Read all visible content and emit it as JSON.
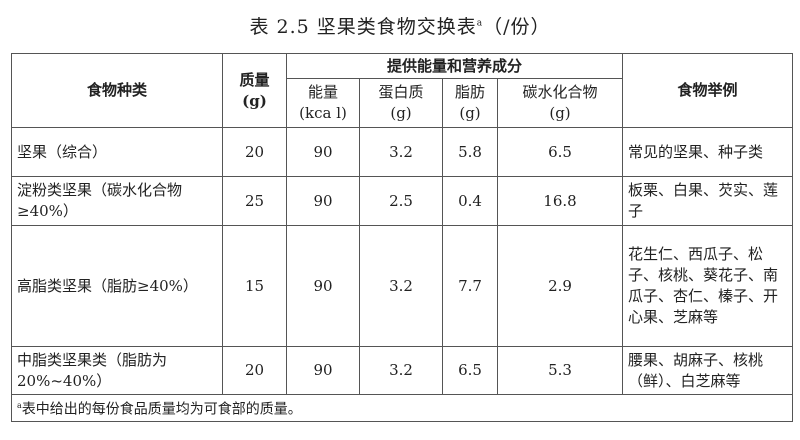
{
  "title": {
    "text": "表 2.5 坚果类食物交换表",
    "sup": "a",
    "suffix": "（/份）"
  },
  "headers": {
    "category": "食物种类",
    "mass": "质量",
    "mass_unit": "(g)",
    "group": "提供能量和营养成分",
    "energy": "能量",
    "energy_unit": "(kca l)",
    "protein": "蛋白质",
    "protein_unit": "(g)",
    "fat": "脂肪",
    "fat_unit": "(g)",
    "carb": "碳水化合物",
    "carb_unit": "(g)",
    "examples": "食物举例"
  },
  "rows": [
    {
      "category": "坚果（综合）",
      "mass": "20",
      "energy": "90",
      "protein": "3.2",
      "fat": "5.8",
      "carb": "6.5",
      "examples": "常见的坚果、种子类"
    },
    {
      "category": "淀粉类坚果（碳水化合物≥40%）",
      "mass": "25",
      "energy": "90",
      "protein": "2.5",
      "fat": "0.4",
      "carb": "16.8",
      "examples": "板栗、白果、芡实、莲子"
    },
    {
      "category": "高脂类坚果（脂肪≥40%）",
      "mass": "15",
      "energy": "90",
      "protein": "3.2",
      "fat": "7.7",
      "carb": "2.9",
      "examples": "花生仁、西瓜子、松子、核桃、葵花子、南瓜子、杏仁、榛子、开心果、芝麻等"
    },
    {
      "category": "中脂类坚果类（脂肪为20%~40%）",
      "mass": "20",
      "energy": "90",
      "protein": "3.2",
      "fat": "6.5",
      "carb": "5.3",
      "examples": "腰果、胡麻子、核桃（鲜）、白芝麻等"
    }
  ],
  "footnote": {
    "sup": "a",
    "text": "表中给出的每份食品质量均为可食部的质量。"
  }
}
